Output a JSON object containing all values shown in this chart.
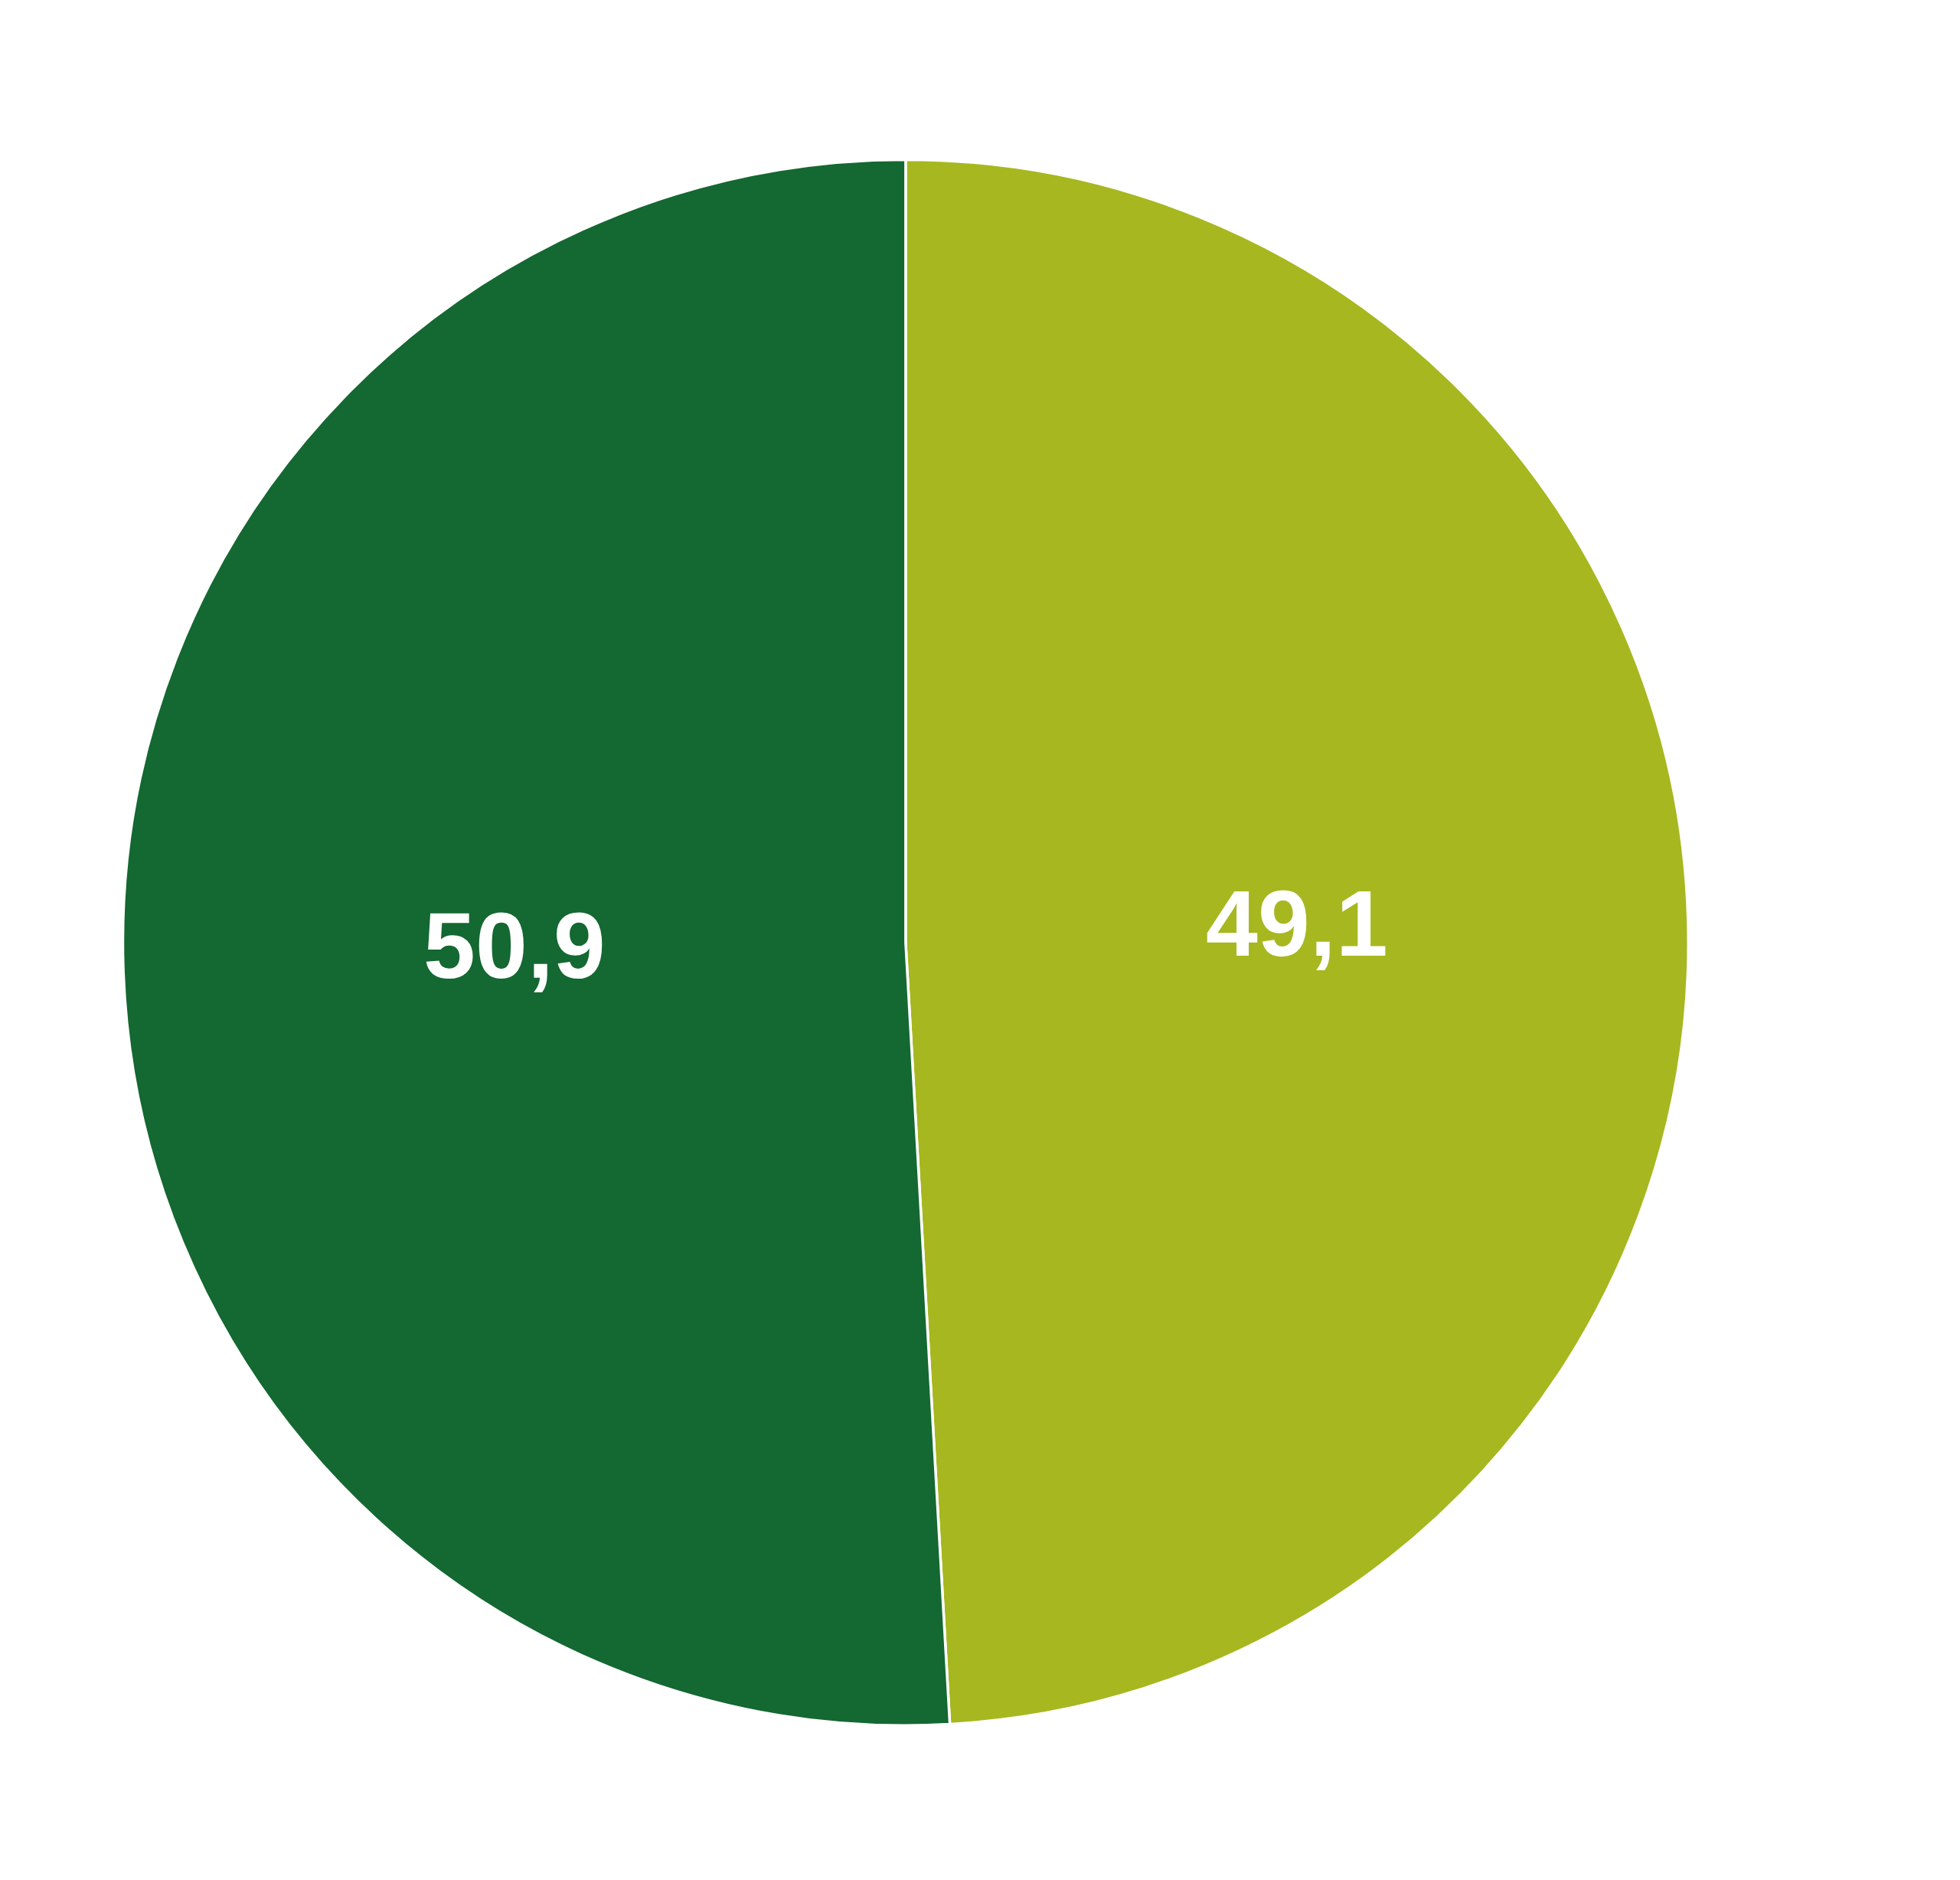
{
  "chart_data": {
    "type": "pie",
    "categories": [
      null,
      null
    ],
    "values": [
      49.1,
      50.9
    ],
    "colors": [
      "#a7b71f",
      "#146831"
    ],
    "value_labels": [
      "49,1",
      "50,9"
    ]
  }
}
